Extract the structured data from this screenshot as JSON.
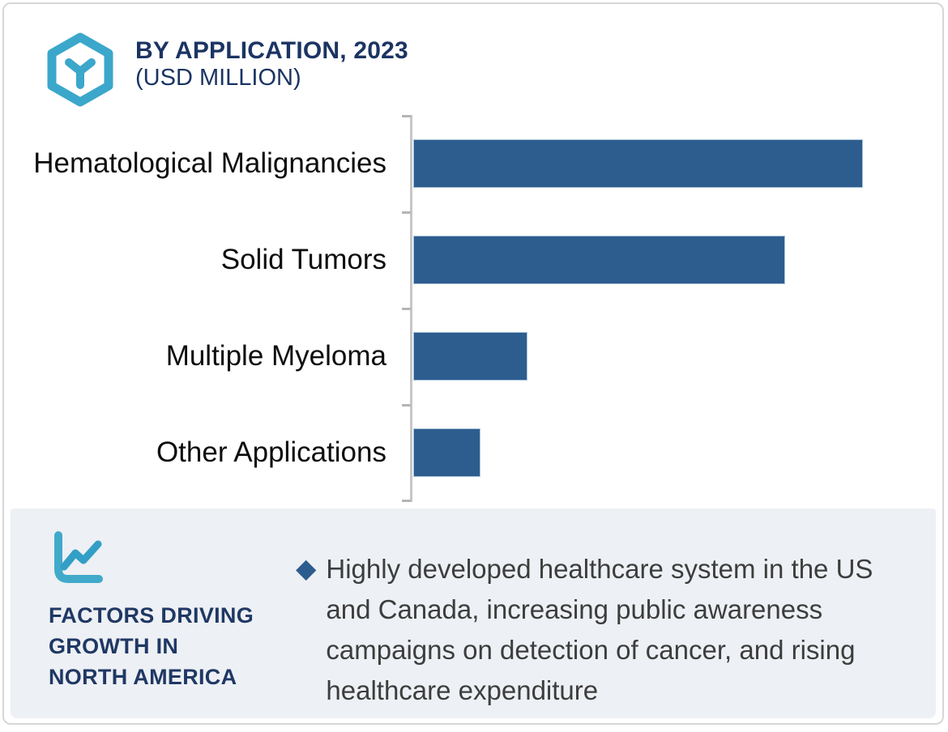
{
  "header": {
    "logo_icon": "hexagon-cube-icon",
    "title": "BY APPLICATION, 2023",
    "subtitle": "(USD MILLION)"
  },
  "chart_data": {
    "type": "bar",
    "orientation": "horizontal",
    "title": "BY APPLICATION, 2023 (USD MILLION)",
    "categories": [
      "Hematological Malignancies",
      "Solid Tumors",
      "Multiple Myeloma",
      "Other Applications"
    ],
    "values": [
      100,
      82.7,
      25.4,
      15.0
    ],
    "values_note": "axis has no numeric tick labels; values are bar lengths as percent of the longest bar",
    "xlabel": "",
    "ylabel": "",
    "grid": false,
    "legend": false,
    "bar_color": "#2d5d8e",
    "axis_color": "#c6c6c6"
  },
  "factors": {
    "icon": "line-chart-icon",
    "title_lines": [
      "FACTORS DRIVING",
      "GROWTH IN",
      "NORTH AMERICA"
    ],
    "bullet_marker": "◆",
    "bullet_text": "Highly developed healthcare system in the US and Canada, increasing public awareness campaigns on detection of cancer, and rising healthcare expenditure"
  },
  "colors": {
    "accent_teal": "#3ba7cb",
    "navy_title": "#1b3463",
    "factors_navy": "#1f3864",
    "bar_blue": "#2d5d8e",
    "panel_bg": "#edf0f4",
    "body_text": "#3d3d3d",
    "axis_gray": "#c6c6c6",
    "card_border": "#d7d7d9"
  }
}
